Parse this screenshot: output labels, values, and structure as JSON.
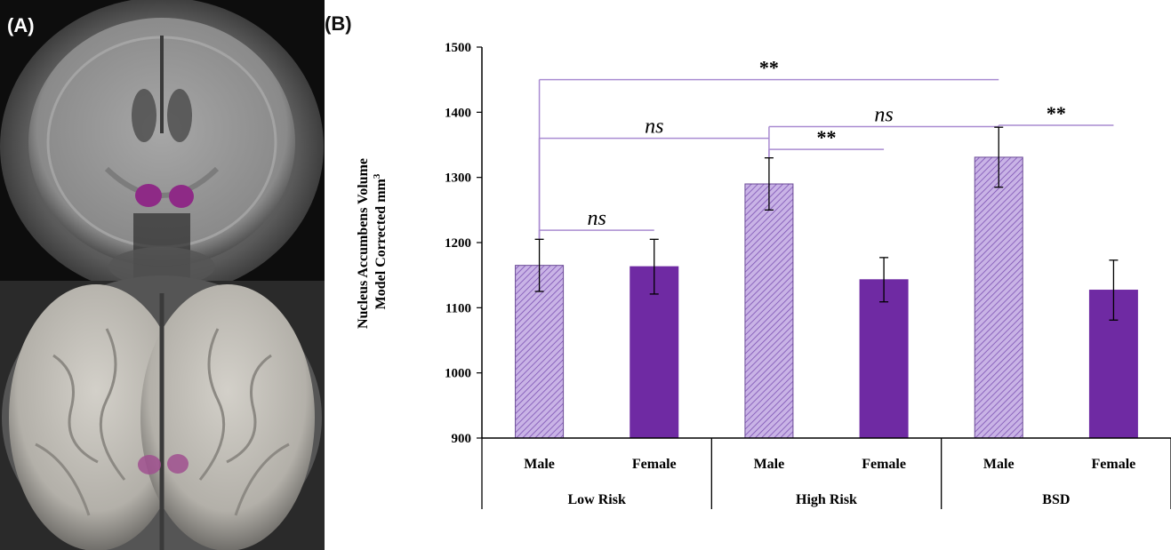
{
  "panels": {
    "a_label": "(A)",
    "b_label": "(B)"
  },
  "colors": {
    "male_fill": "#c9b3e6",
    "male_hatch": "#7c52b3",
    "female_fill": "#6f2aa3",
    "bracket": "#a98bd1",
    "region": "#8e2a86"
  },
  "chart_data": {
    "type": "bar",
    "ylabel_line1": "Nucleus Accumbens Volume",
    "ylabel_line2": "Model Corrected mm",
    "ylabel_sup": "3",
    "ylim": [
      900,
      1500
    ],
    "yticks": [
      900,
      1000,
      1100,
      1200,
      1300,
      1400,
      1500
    ],
    "groups": [
      "Low Risk",
      "High Risk",
      "BSD"
    ],
    "categories": [
      "Male",
      "Female",
      "Male",
      "Female",
      "Male",
      "Female"
    ],
    "values": [
      1165,
      1163,
      1290,
      1143,
      1331,
      1127
    ],
    "errors": [
      40,
      42,
      40,
      34,
      46,
      46
    ],
    "series_style": [
      "male",
      "female",
      "male",
      "female",
      "male",
      "female"
    ],
    "grid": false,
    "annotations": [
      {
        "from": 0,
        "to": 1,
        "y": 1219,
        "label": "ns",
        "italic": true
      },
      {
        "from": 0,
        "to": 2,
        "y": 1360,
        "label": "ns",
        "italic": true
      },
      {
        "from": 2,
        "to": 3,
        "y": 1343,
        "label": "**",
        "italic": false
      },
      {
        "from": 2,
        "to": 4,
        "y": 1378,
        "label": "ns",
        "italic": true
      },
      {
        "from": 0,
        "to": 4,
        "y": 1450,
        "label": "**",
        "italic": false
      },
      {
        "from": 4,
        "to": 5,
        "y": 1380,
        "label": "**",
        "italic": false
      }
    ]
  }
}
